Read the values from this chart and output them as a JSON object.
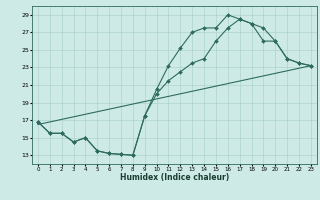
{
  "xlabel": "Humidex (Indice chaleur)",
  "background_color": "#ceeae7",
  "grid_color": "#aed4d0",
  "line_color": "#2e6b5e",
  "xlim": [
    -0.5,
    23.5
  ],
  "ylim": [
    12,
    30
  ],
  "xticks": [
    0,
    1,
    2,
    3,
    4,
    5,
    6,
    7,
    8,
    9,
    10,
    11,
    12,
    13,
    14,
    15,
    16,
    17,
    18,
    19,
    20,
    21,
    22,
    23
  ],
  "yticks": [
    13,
    15,
    17,
    19,
    21,
    23,
    25,
    27,
    29
  ],
  "series1_x": [
    0,
    1,
    2,
    3,
    4,
    5,
    6,
    7,
    8,
    9,
    10,
    11,
    12,
    13,
    14,
    15,
    16,
    17,
    18,
    19,
    20,
    21,
    22,
    23
  ],
  "series1_y": [
    16.8,
    15.5,
    15.5,
    14.5,
    15.0,
    13.5,
    13.2,
    13.1,
    13.0,
    17.5,
    20.5,
    23.2,
    25.2,
    27.0,
    27.5,
    27.5,
    29.0,
    28.5,
    28.0,
    27.5,
    26.0,
    24.0,
    23.5,
    23.2
  ],
  "series2_x": [
    0,
    1,
    2,
    3,
    4,
    5,
    6,
    7,
    8,
    9,
    10,
    11,
    12,
    13,
    14,
    15,
    16,
    17,
    18,
    19,
    20,
    21,
    22,
    23
  ],
  "series2_y": [
    16.8,
    15.5,
    15.5,
    14.5,
    15.0,
    13.5,
    13.2,
    13.1,
    13.0,
    17.5,
    20.0,
    21.5,
    22.5,
    23.5,
    24.0,
    26.0,
    27.5,
    28.5,
    28.0,
    26.0,
    26.0,
    24.0,
    23.5,
    23.2
  ],
  "series3_x": [
    0,
    23
  ],
  "series3_y": [
    16.5,
    23.2
  ]
}
